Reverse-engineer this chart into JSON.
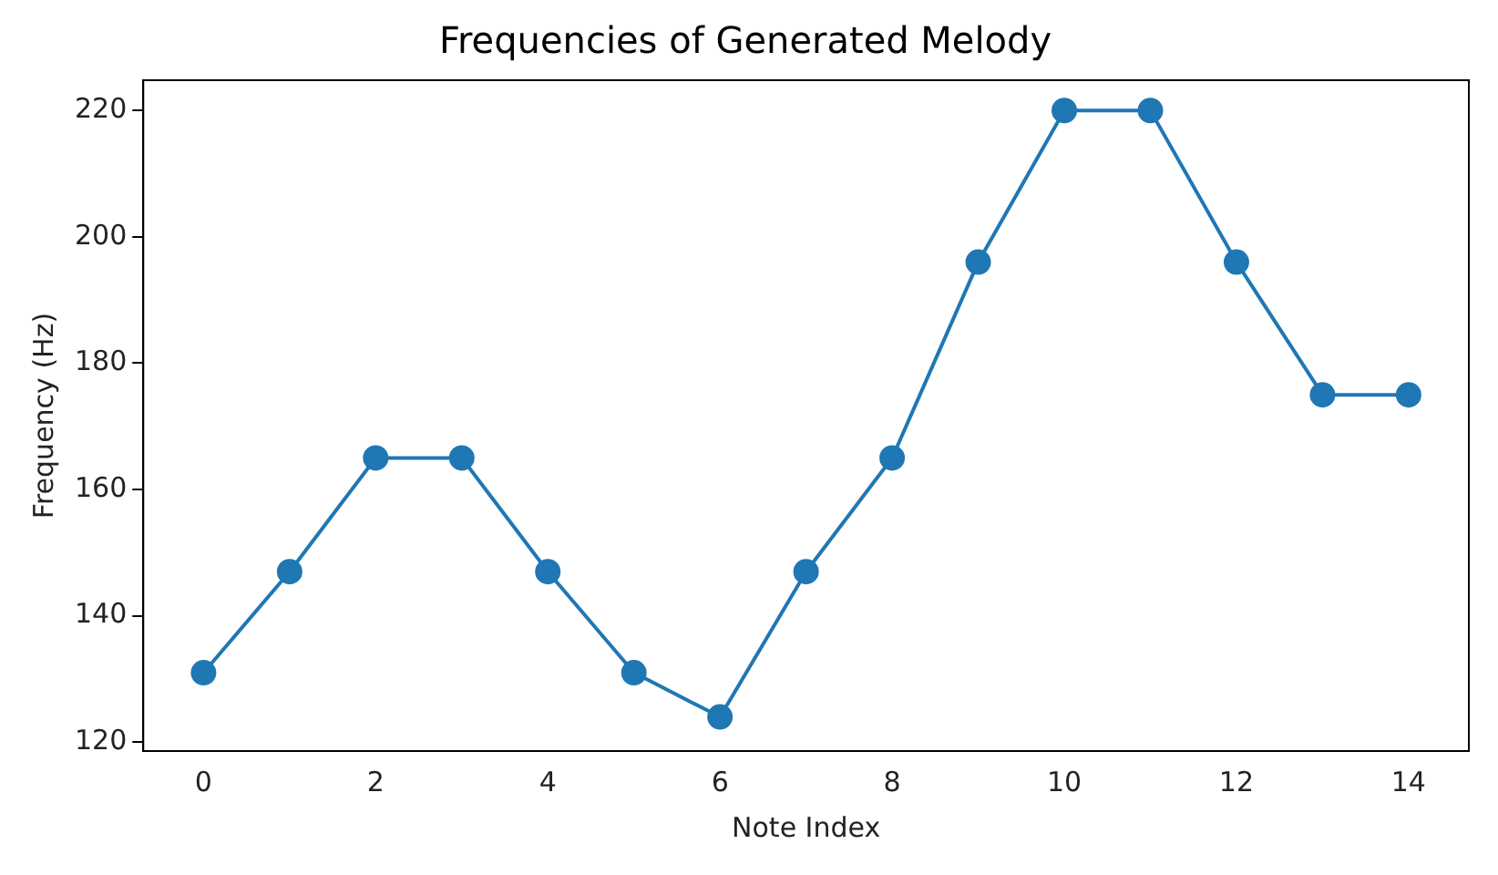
{
  "chart_data": {
    "type": "line",
    "title": "Frequencies of Generated Melody",
    "xlabel": "Note Index",
    "ylabel": "Frequency (Hz)",
    "x": [
      0,
      1,
      2,
      3,
      4,
      5,
      6,
      7,
      8,
      9,
      10,
      11,
      12,
      13,
      14
    ],
    "series": [
      {
        "color": "#1f77b4",
        "values": [
          131,
          147,
          165,
          165,
          147,
          131,
          124,
          147,
          165,
          196,
          220,
          220,
          196,
          175,
          175
        ]
      }
    ],
    "xlim": [
      -0.7,
      14.7
    ],
    "xticks": [
      0,
      2,
      4,
      6,
      8,
      10,
      12,
      14
    ],
    "ylim": [
      118.6,
      224.8
    ],
    "yticks": [
      120,
      140,
      160,
      180,
      200,
      220
    ],
    "marker": "circle",
    "line_style": "solid",
    "grid": false,
    "legend": false
  }
}
